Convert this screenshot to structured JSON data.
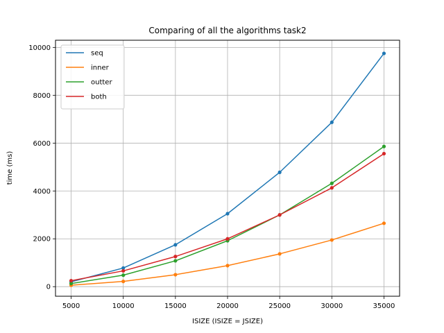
{
  "chart_data": {
    "type": "line",
    "title": "Comparing of all the algorithms task2",
    "xlabel": "ISIZE (ISIZE = JSIZE)",
    "ylabel": "time (ms)",
    "x": [
      5000,
      10000,
      15000,
      20000,
      25000,
      30000,
      35000
    ],
    "xlim": [
      3500,
      36500
    ],
    "ylim": [
      -400,
      10300
    ],
    "xticks": [
      5000,
      10000,
      15000,
      20000,
      25000,
      30000,
      35000
    ],
    "yticks": [
      0,
      2000,
      4000,
      6000,
      8000,
      10000
    ],
    "grid": true,
    "legend_position": "top-left",
    "series": [
      {
        "name": "seq",
        "color": "#1f77b4",
        "values": [
          200,
          780,
          1750,
          3050,
          4780,
          6870,
          9750
        ]
      },
      {
        "name": "inner",
        "color": "#ff7f0e",
        "values": [
          60,
          220,
          500,
          880,
          1370,
          1950,
          2650
        ]
      },
      {
        "name": "outter",
        "color": "#2ca02c",
        "values": [
          130,
          480,
          1080,
          1920,
          3000,
          4320,
          5860
        ]
      },
      {
        "name": "both",
        "color": "#d62728",
        "values": [
          250,
          660,
          1260,
          2000,
          3000,
          4130,
          5560
        ]
      }
    ]
  }
}
